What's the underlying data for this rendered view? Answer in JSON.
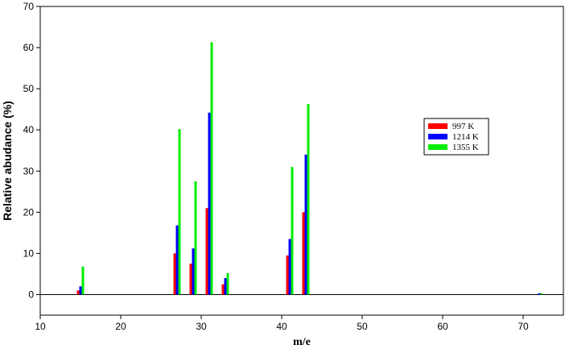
{
  "chart_data": {
    "type": "bar",
    "title": "",
    "xlabel": "m/e",
    "ylabel": "Relative abudance (%)",
    "xlim": [
      10,
      75
    ],
    "ylim": [
      -5,
      70
    ],
    "x_ticks": [
      10,
      20,
      30,
      40,
      50,
      60,
      70
    ],
    "y_ticks": [
      0,
      10,
      20,
      30,
      40,
      50,
      60,
      70
    ],
    "zero_line": true,
    "grid": false,
    "legend_position": "right",
    "x": [
      15,
      27,
      29,
      31,
      33,
      41,
      43,
      72
    ],
    "series": [
      {
        "name": "997 K",
        "color": "#ff0000",
        "values": [
          1,
          10,
          7.5,
          21,
          2.5,
          9.5,
          20,
          0
        ]
      },
      {
        "name": "1214 K",
        "color": "#0000ff",
        "values": [
          2,
          16.8,
          11.2,
          44.2,
          4,
          13.5,
          34,
          0.3
        ]
      },
      {
        "name": "1355 K",
        "color": "#00ee00",
        "values": [
          6.8,
          40.2,
          27.5,
          61.3,
          5.2,
          31,
          46.3,
          0.3
        ]
      }
    ]
  }
}
